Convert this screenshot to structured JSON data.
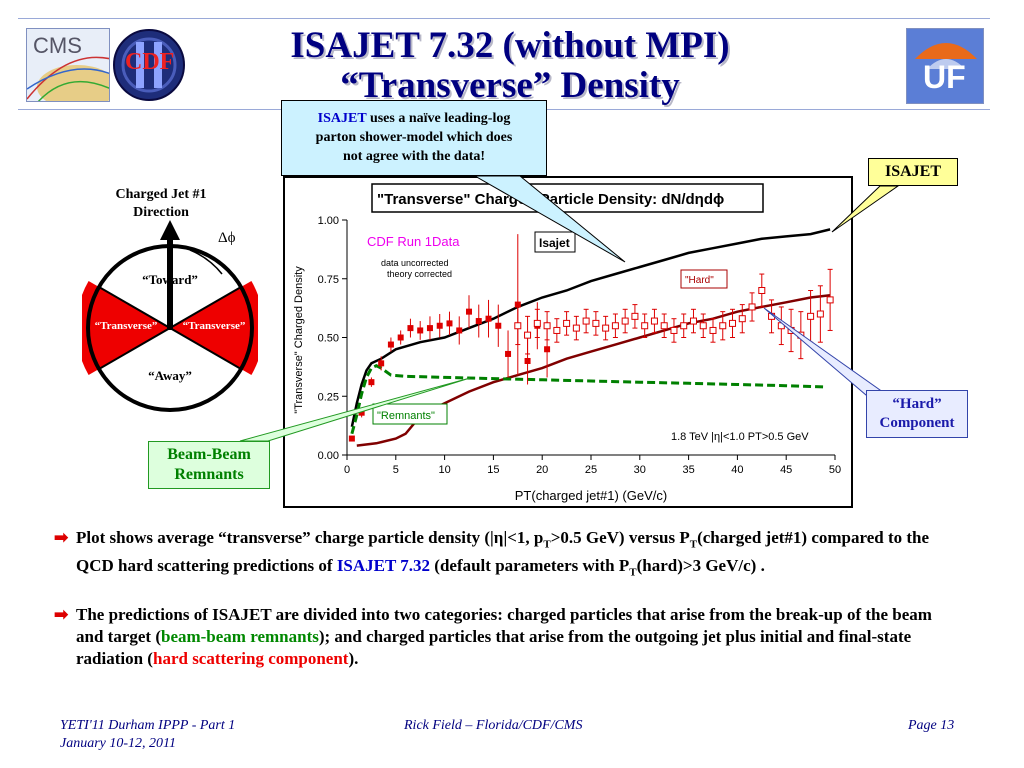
{
  "header": {
    "title_line1": "ISAJET 7.32 (without MPI)",
    "title_line2": "“Transverse” Density",
    "logos": {
      "cms": "CMS",
      "cdf": "CDF",
      "uf": "UF"
    }
  },
  "callouts": {
    "isajet_note": {
      "lead": "ISAJET",
      "line1_rest": " uses a naïve leading-log",
      "line2": "parton shower-model which does",
      "line3": "not agree with the data!"
    },
    "isajet_tag": "ISAJET",
    "hard_component_line1": "“Hard”",
    "hard_component_line2": "Component",
    "beam_beam_line1": "Beam-Beam",
    "beam_beam_line2": "Remnants"
  },
  "diagram": {
    "direction_line1": "Charged Jet #1",
    "direction_line2": "Direction",
    "delta_phi": "Δϕ",
    "toward": "“Toward”",
    "transverse_left": "“Transverse”",
    "transverse_right": "“Transverse”",
    "away": "“Away”",
    "colors": {
      "transverse": "#ee0000",
      "toward_away": "#ffffff"
    }
  },
  "chart_data": {
    "type": "scatter",
    "title": "\"Transverse\" Charged Particle Density: dN/dηdϕ",
    "xlabel": "PT(charged jet#1)  (GeV/c)",
    "ylabel": "\"Transverse\" Charged Density",
    "xlim": [
      0,
      50
    ],
    "ylim": [
      0,
      1.0
    ],
    "x_ticks": [
      "0",
      "5",
      "10",
      "15",
      "20",
      "25",
      "30",
      "35",
      "40",
      "45",
      "50"
    ],
    "y_ticks": [
      "0.00",
      "0.25",
      "0.50",
      "0.75",
      "1.00"
    ],
    "legend_title": "CDF Run 1Data",
    "legend_sub1": "data uncorrected",
    "legend_sub2": "theory corrected",
    "label_isajet": "Isajet",
    "label_hard": "\"Hard\"",
    "label_remnants": "\"Remnants\"",
    "annotation": "1.8 TeV |η|<1.0 PT>0.5 GeV",
    "grid": false,
    "colors": {
      "data": "#dd0000",
      "total": "#000000",
      "hard": "#800000",
      "remnants": "#008000"
    },
    "series": [
      {
        "name": "CDF Run 1Data",
        "points": [
          {
            "x": 0.5,
            "y": 0.07,
            "err": 0.01
          },
          {
            "x": 1.5,
            "y": 0.18,
            "err": 0.02
          },
          {
            "x": 2.5,
            "y": 0.31,
            "err": 0.02
          },
          {
            "x": 3.5,
            "y": 0.39,
            "err": 0.03
          },
          {
            "x": 4.5,
            "y": 0.47,
            "err": 0.03
          },
          {
            "x": 5.5,
            "y": 0.5,
            "err": 0.03
          },
          {
            "x": 6.5,
            "y": 0.54,
            "err": 0.04
          },
          {
            "x": 7.5,
            "y": 0.53,
            "err": 0.04
          },
          {
            "x": 8.5,
            "y": 0.54,
            "err": 0.05
          },
          {
            "x": 9.5,
            "y": 0.55,
            "err": 0.05
          },
          {
            "x": 10.5,
            "y": 0.56,
            "err": 0.05
          },
          {
            "x": 11.5,
            "y": 0.53,
            "err": 0.06
          },
          {
            "x": 12.5,
            "y": 0.61,
            "err": 0.07
          },
          {
            "x": 13.5,
            "y": 0.57,
            "err": 0.07
          },
          {
            "x": 14.5,
            "y": 0.58,
            "err": 0.08
          },
          {
            "x": 15.5,
            "y": 0.55,
            "err": 0.09
          },
          {
            "x": 16.5,
            "y": 0.43,
            "err": 0.1
          },
          {
            "x": 17.5,
            "y": 0.64,
            "err": 0.3
          },
          {
            "x": 18.5,
            "y": 0.4,
            "err": 0.1
          },
          {
            "x": 19.5,
            "y": 0.55,
            "err": 0.1
          },
          {
            "x": 20.5,
            "y": 0.45,
            "err": 0.12
          }
        ]
      },
      {
        "name": "\"Hard\"",
        "points": [
          {
            "x": 17.5,
            "y": 0.55,
            "err": 0.08
          },
          {
            "x": 18.5,
            "y": 0.51,
            "err": 0.08
          },
          {
            "x": 19.5,
            "y": 0.56,
            "err": 0.06
          },
          {
            "x": 20.5,
            "y": 0.55,
            "err": 0.06
          },
          {
            "x": 21.5,
            "y": 0.53,
            "err": 0.05
          },
          {
            "x": 22.5,
            "y": 0.56,
            "err": 0.05
          },
          {
            "x": 23.5,
            "y": 0.54,
            "err": 0.05
          },
          {
            "x": 24.5,
            "y": 0.57,
            "err": 0.05
          },
          {
            "x": 25.5,
            "y": 0.56,
            "err": 0.05
          },
          {
            "x": 26.5,
            "y": 0.54,
            "err": 0.05
          },
          {
            "x": 27.5,
            "y": 0.55,
            "err": 0.05
          },
          {
            "x": 28.5,
            "y": 0.57,
            "err": 0.05
          },
          {
            "x": 29.5,
            "y": 0.59,
            "err": 0.05
          },
          {
            "x": 30.5,
            "y": 0.55,
            "err": 0.05
          },
          {
            "x": 31.5,
            "y": 0.57,
            "err": 0.05
          },
          {
            "x": 32.5,
            "y": 0.55,
            "err": 0.05
          },
          {
            "x": 33.5,
            "y": 0.53,
            "err": 0.05
          },
          {
            "x": 34.5,
            "y": 0.55,
            "err": 0.05
          },
          {
            "x": 35.5,
            "y": 0.57,
            "err": 0.05
          },
          {
            "x": 36.5,
            "y": 0.55,
            "err": 0.05
          },
          {
            "x": 37.5,
            "y": 0.53,
            "err": 0.05
          },
          {
            "x": 38.5,
            "y": 0.55,
            "err": 0.06
          },
          {
            "x": 39.5,
            "y": 0.56,
            "err": 0.06
          },
          {
            "x": 40.5,
            "y": 0.58,
            "err": 0.06
          },
          {
            "x": 41.5,
            "y": 0.63,
            "err": 0.06
          },
          {
            "x": 42.5,
            "y": 0.7,
            "err": 0.07
          },
          {
            "x": 43.5,
            "y": 0.59,
            "err": 0.07
          },
          {
            "x": 44.5,
            "y": 0.55,
            "err": 0.08
          },
          {
            "x": 45.5,
            "y": 0.53,
            "err": 0.09
          },
          {
            "x": 46.5,
            "y": 0.51,
            "err": 0.1
          },
          {
            "x": 47.5,
            "y": 0.59,
            "err": 0.11
          },
          {
            "x": 48.5,
            "y": 0.6,
            "err": 0.12
          },
          {
            "x": 49.5,
            "y": 0.66,
            "err": 0.13
          }
        ]
      },
      {
        "name": "Isajet",
        "points": [
          {
            "x": 0.5,
            "y": 0.12
          },
          {
            "x": 1,
            "y": 0.22
          },
          {
            "x": 1.5,
            "y": 0.3
          },
          {
            "x": 2,
            "y": 0.36
          },
          {
            "x": 2.5,
            "y": 0.39
          },
          {
            "x": 3.5,
            "y": 0.41
          },
          {
            "x": 5,
            "y": 0.45
          },
          {
            "x": 7.5,
            "y": 0.48
          },
          {
            "x": 10,
            "y": 0.5
          },
          {
            "x": 12.5,
            "y": 0.54
          },
          {
            "x": 15,
            "y": 0.58
          },
          {
            "x": 17.5,
            "y": 0.63
          },
          {
            "x": 20,
            "y": 0.67
          },
          {
            "x": 22.5,
            "y": 0.7
          },
          {
            "x": 25,
            "y": 0.74
          },
          {
            "x": 27.5,
            "y": 0.77
          },
          {
            "x": 30,
            "y": 0.8
          },
          {
            "x": 32.5,
            "y": 0.83
          },
          {
            "x": 35,
            "y": 0.86
          },
          {
            "x": 37.5,
            "y": 0.88
          },
          {
            "x": 40,
            "y": 0.9
          },
          {
            "x": 42.5,
            "y": 0.92
          },
          {
            "x": 45,
            "y": 0.93
          },
          {
            "x": 47.5,
            "y": 0.94
          },
          {
            "x": 49.5,
            "y": 0.96
          }
        ]
      },
      {
        "name": "\"Hard\"",
        "points": [
          {
            "x": 1,
            "y": 0.04
          },
          {
            "x": 3,
            "y": 0.05
          },
          {
            "x": 5,
            "y": 0.07
          },
          {
            "x": 6,
            "y": 0.09
          },
          {
            "x": 7,
            "y": 0.14
          },
          {
            "x": 8,
            "y": 0.18
          },
          {
            "x": 10,
            "y": 0.22
          },
          {
            "x": 12.5,
            "y": 0.27
          },
          {
            "x": 15,
            "y": 0.31
          },
          {
            "x": 17.5,
            "y": 0.34
          },
          {
            "x": 20,
            "y": 0.37
          },
          {
            "x": 22.5,
            "y": 0.41
          },
          {
            "x": 25,
            "y": 0.44
          },
          {
            "x": 27.5,
            "y": 0.47
          },
          {
            "x": 30,
            "y": 0.5
          },
          {
            "x": 32.5,
            "y": 0.53
          },
          {
            "x": 35,
            "y": 0.56
          },
          {
            "x": 37.5,
            "y": 0.58
          },
          {
            "x": 40,
            "y": 0.61
          },
          {
            "x": 42.5,
            "y": 0.63
          },
          {
            "x": 45,
            "y": 0.65
          },
          {
            "x": 47.5,
            "y": 0.67
          },
          {
            "x": 49.5,
            "y": 0.68
          }
        ]
      },
      {
        "name": "\"Remnants\"",
        "points": [
          {
            "x": 0.5,
            "y": 0.09
          },
          {
            "x": 1,
            "y": 0.17
          },
          {
            "x": 1.5,
            "y": 0.26
          },
          {
            "x": 2,
            "y": 0.33
          },
          {
            "x": 2.5,
            "y": 0.37
          },
          {
            "x": 3,
            "y": 0.38
          },
          {
            "x": 3.5,
            "y": 0.37
          },
          {
            "x": 4.5,
            "y": 0.34
          },
          {
            "x": 6,
            "y": 0.335
          },
          {
            "x": 10,
            "y": 0.33
          },
          {
            "x": 15,
            "y": 0.325
          },
          {
            "x": 20,
            "y": 0.32
          },
          {
            "x": 25,
            "y": 0.315
          },
          {
            "x": 30,
            "y": 0.31
          },
          {
            "x": 35,
            "y": 0.305
          },
          {
            "x": 40,
            "y": 0.3
          },
          {
            "x": 45,
            "y": 0.295
          },
          {
            "x": 49,
            "y": 0.29
          }
        ]
      }
    ]
  },
  "bullets": [
    {
      "p1": "Plot shows average “transverse” charge particle density (|",
      "eta": "η",
      "p2": "|<1, p",
      "sub1": "T",
      "p3": ">0.5 GeV) versus P",
      "sub2": "T",
      "p4": "(charged jet#1) compared to the QCD hard scattering predictions of ",
      "isajet": "ISAJET 7.32",
      "p5": " (default parameters with P",
      "sub3": "T",
      "p6": "(hard)>3 GeV/c) ."
    },
    {
      "p1": "The predictions of ISAJET are divided into two categories: charged particles that arise from the break-up of the beam and target (",
      "green": "beam-beam remnants",
      "p2": "); and charged particles that arise from the outgoing jet plus initial and final-state radiation (",
      "red": "hard scattering component",
      "p3": ")."
    }
  ],
  "footer": {
    "left_line1": "YETI'11 Durham IPPP - Part 1",
    "left_line2": "January 10-12, 2011",
    "center": "Rick Field – Florida/CDF/CMS",
    "right": "Page 13"
  }
}
